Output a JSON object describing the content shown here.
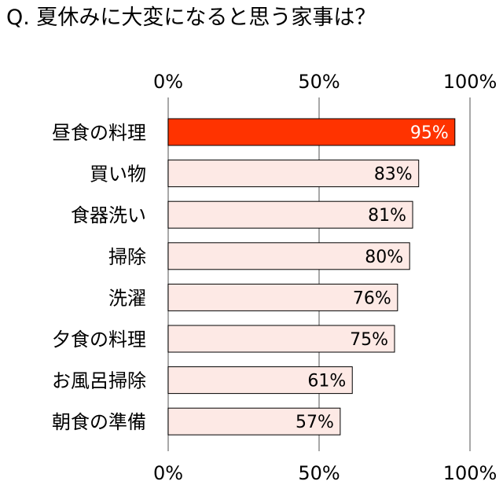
{
  "chart_data": {
    "type": "bar",
    "orientation": "horizontal",
    "title": "Q. 夏休みに大変になると思う家事は？",
    "categories": [
      "昼食の料理",
      "買い物",
      "食器洗い",
      "掃除",
      "洗濯",
      "夕食の料理",
      "お風呂掃除",
      "朝食の準備"
    ],
    "values": [
      95,
      83,
      81,
      80,
      76,
      75,
      61,
      57
    ],
    "value_labels": [
      "95%",
      "83%",
      "81%",
      "80%",
      "76%",
      "75%",
      "61%",
      "57%"
    ],
    "xlim": [
      0,
      100
    ],
    "x_ticks": [
      0,
      50,
      100
    ],
    "x_tick_labels": [
      "0%",
      "50%",
      "100%"
    ],
    "axis_ticks_position": "top-and-bottom",
    "grid": "vertical lines at 0, 50, 100",
    "colors": {
      "highlight_bar": "#ff3300",
      "bar": "#fde9e5",
      "bar_border": "#000000",
      "highlight_label": "#ffffff",
      "label": "#000000",
      "grid": "#8c8c8c"
    }
  }
}
